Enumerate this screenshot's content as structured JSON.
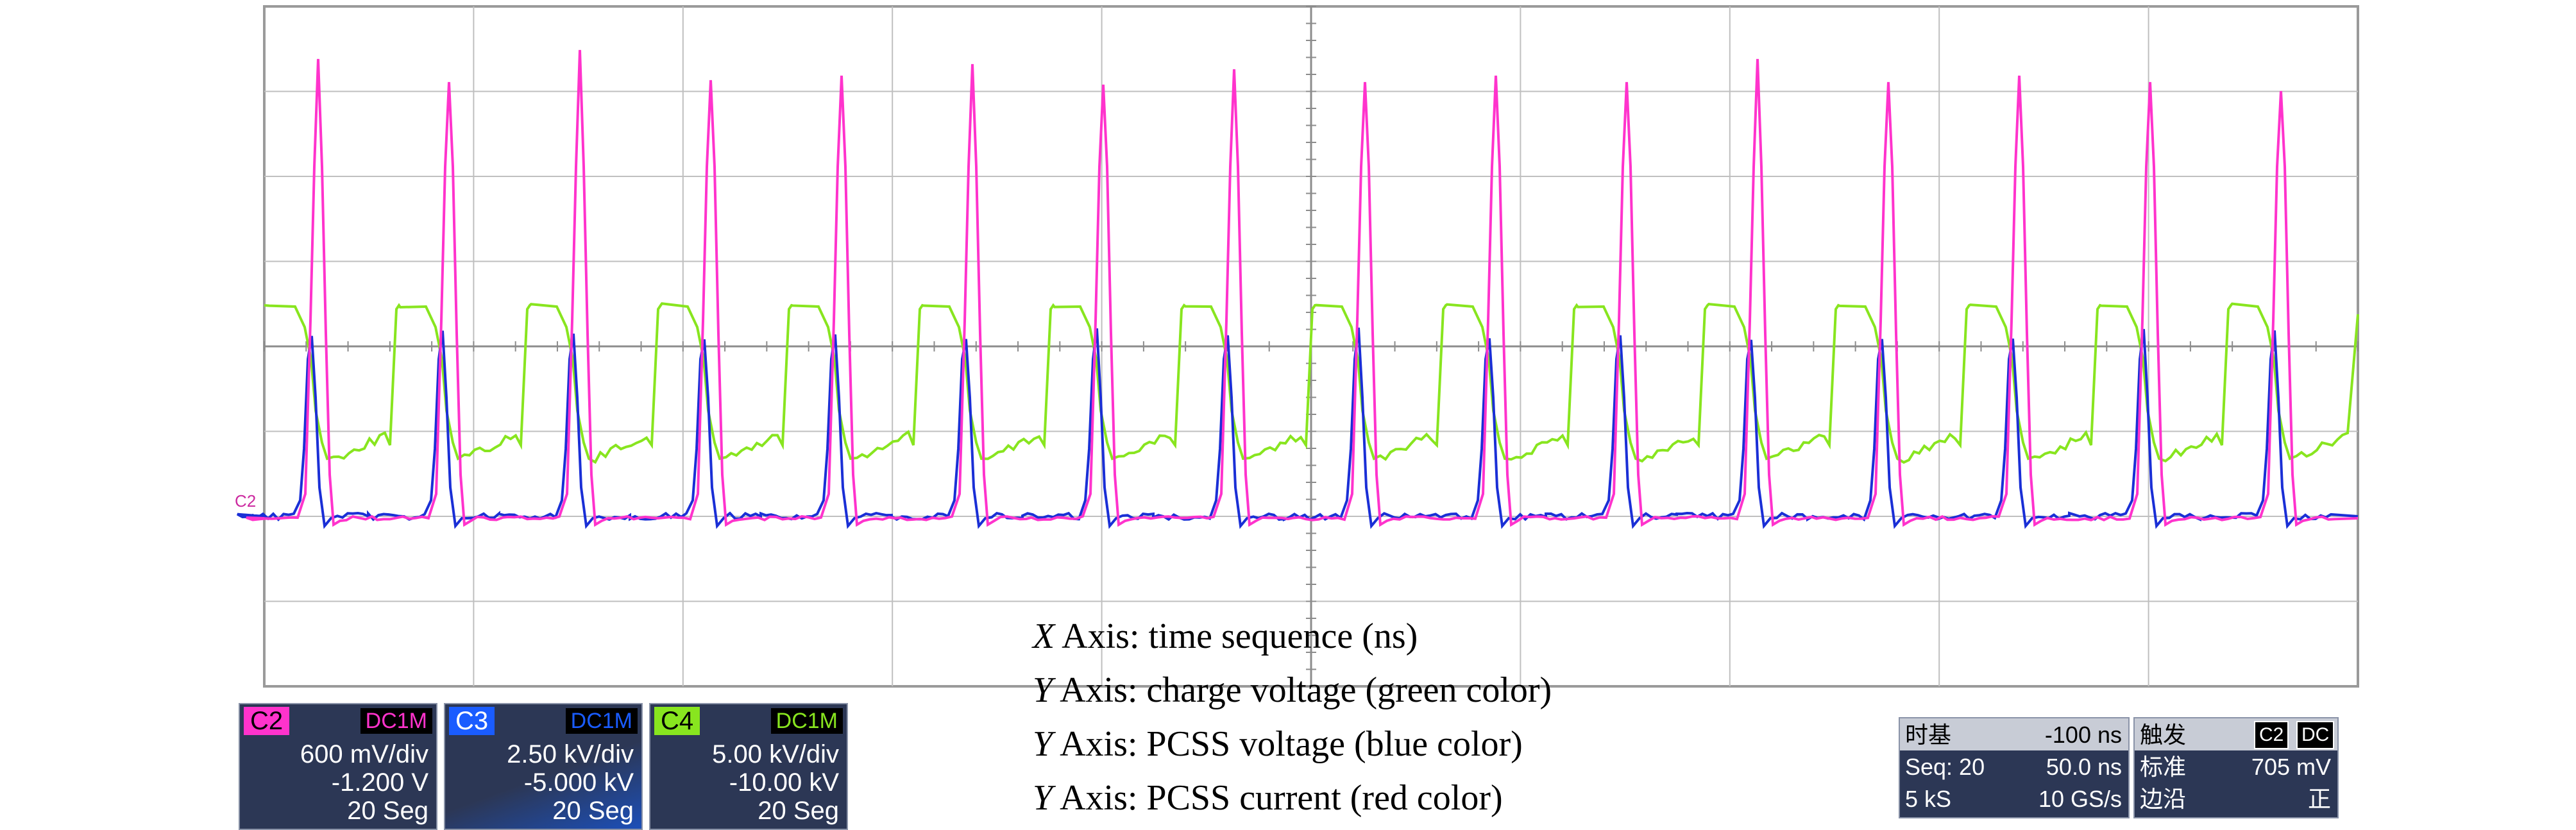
{
  "colors": {
    "grid": "#bfbfbf",
    "background": "#ffffff",
    "ch2_current": "#ff33cc",
    "ch3_pcss_voltage": "#1a2fd6",
    "ch4_charge_voltage": "#88e51f",
    "panel_bg": "#2c3755"
  },
  "screen": {
    "marker_label": "C2",
    "horizontal_divisions": 10,
    "vertical_divisions": 8,
    "pulse_count": 16
  },
  "captions": [
    {
      "italic": "X",
      "text": " Axis: time sequence (ns)"
    },
    {
      "italic": "Y",
      "text": " Axis: charge voltage (green color)"
    },
    {
      "italic": "Y",
      "text": " Axis: PCSS voltage (blue color)"
    },
    {
      "italic": "Y",
      "text": " Axis: PCSS current (red color)"
    }
  ],
  "channels": [
    {
      "id": "C2",
      "coupling": "DC1M",
      "scale": "600 mV/div",
      "offset": "-1.200 V",
      "segments": "20 Seg",
      "color": "#ff33cc"
    },
    {
      "id": "C3",
      "coupling": "DC1M",
      "scale": "2.50 kV/div",
      "offset": "-5.000 kV",
      "segments": "20 Seg",
      "color": "#1a5cff"
    },
    {
      "id": "C4",
      "coupling": "DC1M",
      "scale": "5.00 kV/div",
      "offset": "-10.00 kV",
      "segments": "20 Seg",
      "color": "#88e51f"
    }
  ],
  "timebase": {
    "label": "时基",
    "delay": "-100 ns",
    "seq": "Seq: 20",
    "per_div": "50.0 ns",
    "samples": "5 kS",
    "rate": "10 GS/s"
  },
  "trigger": {
    "label": "触发",
    "source_badge": "C2",
    "coupling_badge": "DC",
    "mode": "标准",
    "level": "705 mV",
    "edge_label": "边沿",
    "slope": "正"
  }
}
